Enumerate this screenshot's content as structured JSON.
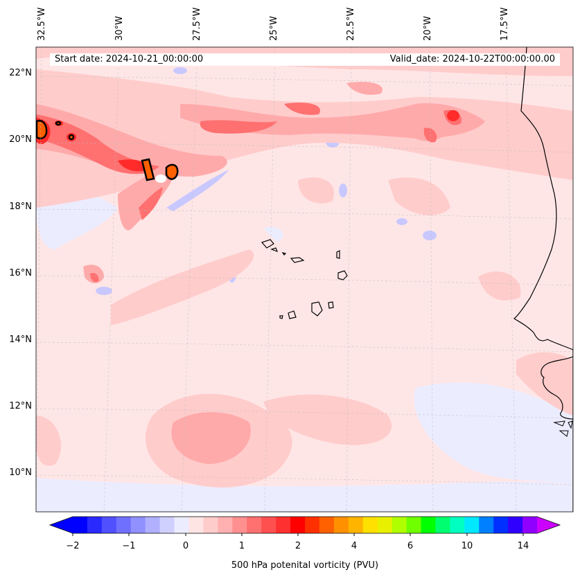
{
  "map": {
    "start_date": "Start date: 2024-10-21_00:00:00",
    "valid_date": "Valid_date: 2024-10-22T00:00:00.00",
    "lon_ticks": [
      "32.5°W",
      "30°W",
      "27.5°W",
      "25°W",
      "22.5°W",
      "20°W",
      "17.5°W"
    ],
    "lat_ticks": [
      "22°N",
      "20°N",
      "18°N",
      "16°N",
      "14°N",
      "12°N",
      "10°N"
    ]
  },
  "colorbar": {
    "label": "500 hPa potenital vorticity (PVU)",
    "ticks": [
      "−2",
      "−1",
      "0",
      "1",
      "2",
      "4",
      "6",
      "10",
      "14"
    ],
    "colors": [
      "#0000ff",
      "#2a2aff",
      "#5050ff",
      "#7070ff",
      "#9090ff",
      "#b0b0ff",
      "#d0d0ff",
      "#ececff",
      "#ffe4e4",
      "#ffcccc",
      "#ffb0b0",
      "#ff9090",
      "#ff7070",
      "#ff5050",
      "#ff3030",
      "#ff0000",
      "#ff3000",
      "#ff6000",
      "#ff9000",
      "#ffb400",
      "#ffe000",
      "#e8f000",
      "#b0ff00",
      "#70ff00",
      "#00ff00",
      "#00ff70",
      "#00ffc0",
      "#00e8ff",
      "#0080ff",
      "#0030ff",
      "#3000ff",
      "#9000ff"
    ]
  }
}
